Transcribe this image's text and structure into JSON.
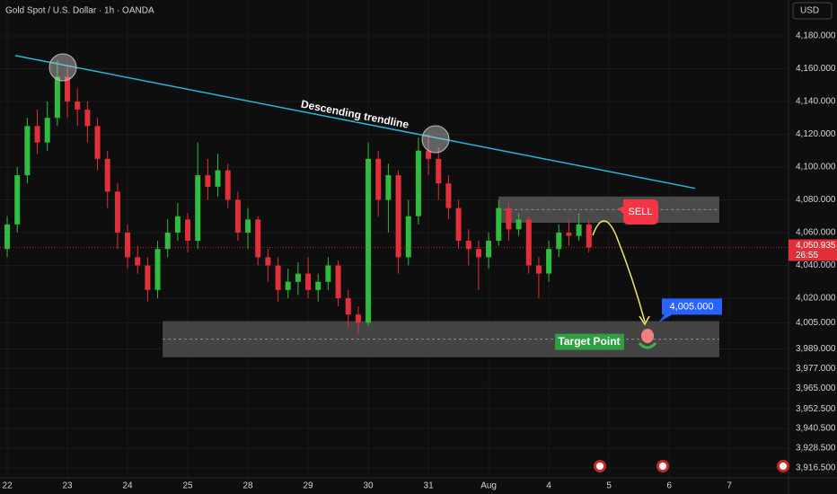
{
  "chart_data": {
    "type": "candlestick",
    "title": "Gold Spot / U.S. Dollar · 1h · OANDA",
    "currency": "USD",
    "up_color": "#2ebd3c",
    "down_color": "#e0303a",
    "open": [
      4050,
      4065,
      4095,
      4125,
      4115,
      4130,
      4155,
      4140,
      4135,
      4125,
      4105,
      4085,
      4060,
      4045,
      4040,
      4025,
      4050,
      4060,
      4068,
      4055,
      4095,
      4088,
      4098,
      4080,
      4060,
      4068,
      4045,
      4040,
      4025,
      4030,
      4035,
      4025,
      4030,
      4040,
      4020,
      4010,
      4005,
      4105,
      4080,
      4095,
      4045,
      4070,
      4110,
      4105,
      4090,
      4075,
      4055,
      4050,
      4045,
      4055,
      4075,
      4062,
      4068,
      4040,
      4035,
      4050,
      4060,
      4058,
      4065
    ],
    "high": [
      4070,
      4100,
      4130,
      4135,
      4140,
      4165,
      4162,
      4148,
      4140,
      4130,
      4110,
      4090,
      4065,
      4052,
      4045,
      4055,
      4068,
      4078,
      4072,
      4115,
      4105,
      4108,
      4102,
      4085,
      4075,
      4070,
      4050,
      4045,
      4038,
      4042,
      4045,
      4035,
      4045,
      4043,
      4025,
      4015,
      4115,
      4110,
      4102,
      4098,
      4080,
      4118,
      4120,
      4112,
      4095,
      4080,
      4062,
      4055,
      4060,
      4080,
      4078,
      4072,
      4070,
      4045,
      4055,
      4065,
      4068,
      4072,
      4068
    ],
    "low": [
      4045,
      4060,
      4090,
      4108,
      4110,
      4125,
      4130,
      4125,
      4115,
      4098,
      4075,
      4050,
      4038,
      4035,
      4018,
      4020,
      4045,
      4055,
      4048,
      4050,
      4080,
      4082,
      4075,
      4055,
      4050,
      4040,
      4030,
      4018,
      4020,
      4022,
      4020,
      4018,
      4025,
      4015,
      4002,
      3998,
      4003,
      4070,
      4060,
      4035,
      4040,
      4065,
      4095,
      4080,
      4068,
      4050,
      4040,
      4025,
      4038,
      4052,
      4055,
      4058,
      4035,
      4020,
      4030,
      4045,
      4052,
      4055,
      4048
    ],
    "close": [
      4065,
      4095,
      4125,
      4115,
      4130,
      4155,
      4140,
      4135,
      4125,
      4105,
      4085,
      4060,
      4045,
      4040,
      4025,
      4050,
      4060,
      4070,
      4055,
      4095,
      4088,
      4098,
      4080,
      4060,
      4068,
      4045,
      4040,
      4025,
      4030,
      4035,
      4025,
      4030,
      4040,
      4020,
      4010,
      4005,
      4105,
      4080,
      4095,
      4045,
      4070,
      4110,
      4105,
      4090,
      4075,
      4055,
      4050,
      4045,
      4055,
      4075,
      4062,
      4068,
      4040,
      4035,
      4050,
      4060,
      4058,
      4065,
      4051
    ],
    "xlim": [
      -0.72,
      77.9
    ],
    "xticks": [
      {
        "value": 0,
        "label": "22"
      },
      {
        "value": 6,
        "label": "23"
      },
      {
        "value": 12,
        "label": "24"
      },
      {
        "value": 18,
        "label": "25"
      },
      {
        "value": 24,
        "label": "28"
      },
      {
        "value": 30,
        "label": "29"
      },
      {
        "value": 36,
        "label": "30"
      },
      {
        "value": 42,
        "label": "31"
      },
      {
        "value": 48,
        "label": "Aug"
      },
      {
        "value": 54,
        "label": "4"
      },
      {
        "value": 60,
        "label": "5"
      },
      {
        "value": 66,
        "label": "6"
      },
      {
        "value": 72,
        "label": "7"
      }
    ],
    "ylim": [
      3910.4,
      4201.9
    ],
    "yticks": [
      {
        "value": 4180,
        "label": "4,180.000"
      },
      {
        "value": 4160,
        "label": "4,160.000"
      },
      {
        "value": 4140,
        "label": "4,140.000"
      },
      {
        "value": 4120,
        "label": "4,120.000"
      },
      {
        "value": 4100,
        "label": "4,100.000"
      },
      {
        "value": 4080,
        "label": "4,080.000"
      },
      {
        "value": 4060,
        "label": "4,060.000"
      },
      {
        "value": 4040,
        "label": "4,040.000"
      },
      {
        "value": 4020,
        "label": "4,020.000"
      },
      {
        "value": 4005,
        "label": "4,005.000"
      },
      {
        "value": 3989,
        "label": "3,989.000"
      },
      {
        "value": 3977,
        "label": "3,977.000"
      },
      {
        "value": 3965,
        "label": "3,965.000"
      },
      {
        "value": 3952.5,
        "label": "3,952.500"
      },
      {
        "value": 3940.5,
        "label": "3,940.500"
      },
      {
        "value": 3928.5,
        "label": "3,928.500"
      },
      {
        "value": 3916.5,
        "label": "3,916.500"
      }
    ],
    "grid": true,
    "trendline": {
      "label": "Descending trendline",
      "color": "#29b6d8",
      "x": [
        0.8,
        68.6
      ],
      "y": [
        4168,
        4087
      ]
    },
    "sell_zone": {
      "xlim": [
        49,
        71
      ],
      "ylim": [
        4066,
        4082
      ],
      "label": "SELL"
    },
    "target_zone": {
      "xlim": [
        15.5,
        71
      ],
      "ylim": [
        3984,
        4006
      ],
      "label": "Target Point"
    },
    "target_price": {
      "value": 4005,
      "label": "4,005.000"
    },
    "last_price": {
      "value": 4050.935,
      "label": "4,050.935"
    },
    "countdown": "26:55"
  }
}
